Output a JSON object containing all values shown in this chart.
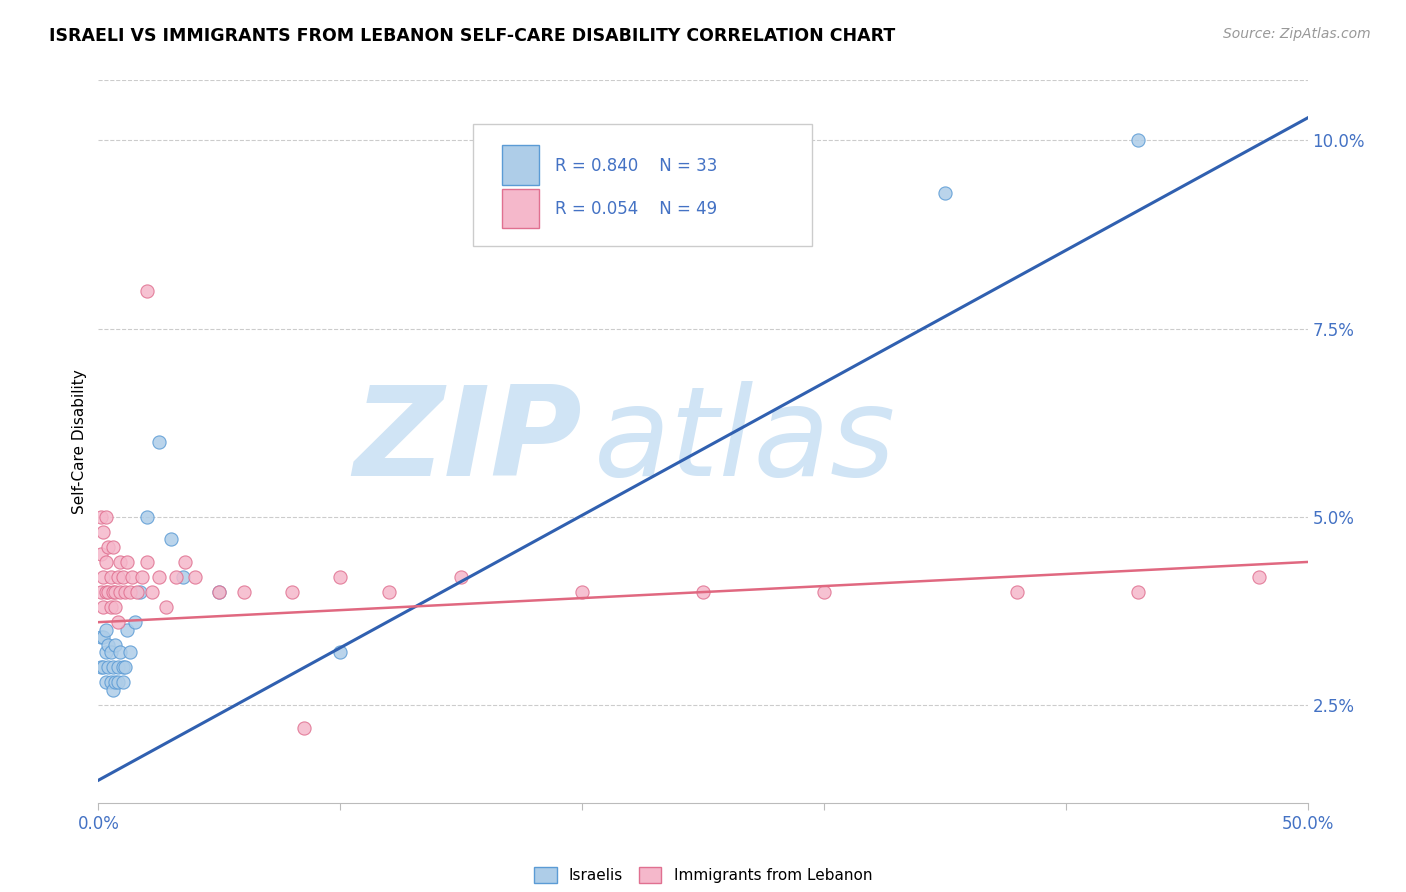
{
  "title": "ISRAELI VS IMMIGRANTS FROM LEBANON SELF-CARE DISABILITY CORRELATION CHART",
  "source": "Source: ZipAtlas.com",
  "ylabel": "Self-Care Disability",
  "xlim": [
    0.0,
    0.5
  ],
  "ylim": [
    0.012,
    0.108
  ],
  "y_ticks_right": [
    0.025,
    0.05,
    0.075,
    0.1
  ],
  "y_tick_labels_right": [
    "2.5%",
    "5.0%",
    "7.5%",
    "10.0%"
  ],
  "legend1_R": "0.840",
  "legend1_N": "33",
  "legend2_R": "0.054",
  "legend2_N": "49",
  "israeli_color": "#aecde8",
  "lebanon_color": "#f5b8cb",
  "israeli_edge_color": "#5b9bd5",
  "lebanon_edge_color": "#e07090",
  "israeli_line_color": "#3060b0",
  "lebanon_line_color": "#e06880",
  "watermark_zip": "ZIP",
  "watermark_atlas": "atlas",
  "watermark_color": "#d0e4f5",
  "israelis_x": [
    0.001,
    0.001,
    0.002,
    0.002,
    0.003,
    0.003,
    0.003,
    0.004,
    0.004,
    0.005,
    0.005,
    0.006,
    0.006,
    0.007,
    0.007,
    0.008,
    0.008,
    0.009,
    0.01,
    0.01,
    0.011,
    0.012,
    0.013,
    0.015,
    0.017,
    0.02,
    0.025,
    0.03,
    0.035,
    0.05,
    0.1,
    0.35,
    0.43
  ],
  "israelis_y": [
    0.034,
    0.03,
    0.034,
    0.03,
    0.035,
    0.032,
    0.028,
    0.033,
    0.03,
    0.032,
    0.028,
    0.03,
    0.027,
    0.033,
    0.028,
    0.03,
    0.028,
    0.032,
    0.03,
    0.028,
    0.03,
    0.035,
    0.032,
    0.036,
    0.04,
    0.05,
    0.06,
    0.047,
    0.042,
    0.04,
    0.032,
    0.093,
    0.1
  ],
  "lebanon_x": [
    0.001,
    0.001,
    0.001,
    0.002,
    0.002,
    0.002,
    0.003,
    0.003,
    0.003,
    0.004,
    0.004,
    0.005,
    0.005,
    0.006,
    0.006,
    0.007,
    0.007,
    0.008,
    0.008,
    0.009,
    0.009,
    0.01,
    0.011,
    0.012,
    0.013,
    0.014,
    0.016,
    0.018,
    0.02,
    0.022,
    0.025,
    0.028,
    0.032,
    0.036,
    0.04,
    0.05,
    0.06,
    0.08,
    0.1,
    0.12,
    0.15,
    0.2,
    0.25,
    0.3,
    0.38,
    0.43,
    0.48,
    0.02,
    0.085
  ],
  "lebanon_y": [
    0.04,
    0.045,
    0.05,
    0.038,
    0.042,
    0.048,
    0.04,
    0.044,
    0.05,
    0.04,
    0.046,
    0.038,
    0.042,
    0.04,
    0.046,
    0.04,
    0.038,
    0.042,
    0.036,
    0.04,
    0.044,
    0.042,
    0.04,
    0.044,
    0.04,
    0.042,
    0.04,
    0.042,
    0.044,
    0.04,
    0.042,
    0.038,
    0.042,
    0.044,
    0.042,
    0.04,
    0.04,
    0.04,
    0.042,
    0.04,
    0.042,
    0.04,
    0.04,
    0.04,
    0.04,
    0.04,
    0.042,
    0.08,
    0.022
  ],
  "blue_line_x": [
    0.0,
    0.5
  ],
  "blue_line_y": [
    0.015,
    0.103
  ],
  "pink_line_x": [
    0.0,
    0.5
  ],
  "pink_line_y": [
    0.036,
    0.044
  ]
}
